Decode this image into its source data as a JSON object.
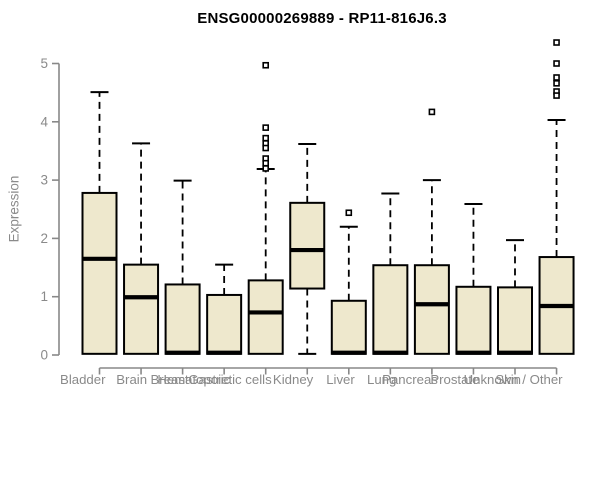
{
  "chart_data": {
    "type": "boxplot",
    "title": "ENSG00000269889 - RP11-816J6.3",
    "xlabel": "",
    "ylabel": "Expression",
    "ylim": [
      0,
      5
    ],
    "yticks": [
      0,
      1,
      2,
      3,
      4,
      5
    ],
    "grid": false,
    "legend": "none",
    "categories": [
      "Bladder",
      "Brain",
      "Breast",
      "Gastric",
      "Hematopoietic cells",
      "Kidney",
      "Liver",
      "Lung",
      "Pancreas",
      "Prostate",
      "Skin",
      "Unknown / Other"
    ],
    "series": [
      {
        "name": "Bladder",
        "whisker_low": 0.02,
        "q1": 0.02,
        "median": 1.65,
        "q3": 2.78,
        "whisker_high": 4.51,
        "outliers": []
      },
      {
        "name": "Brain",
        "whisker_low": 0.02,
        "q1": 0.02,
        "median": 0.99,
        "q3": 1.55,
        "whisker_high": 3.63,
        "outliers": []
      },
      {
        "name": "Breast",
        "whisker_low": 0.02,
        "q1": 0.02,
        "median": 0.04,
        "q3": 1.21,
        "whisker_high": 2.99,
        "outliers": []
      },
      {
        "name": "Gastric",
        "whisker_low": 0.02,
        "q1": 0.02,
        "median": 0.04,
        "q3": 1.03,
        "whisker_high": 1.55,
        "outliers": []
      },
      {
        "name": "Hematopoietic cells",
        "whisker_low": 0.02,
        "q1": 0.02,
        "median": 0.73,
        "q3": 1.28,
        "whisker_high": 3.19,
        "outliers": [
          4.97,
          3.9,
          3.72,
          3.63,
          3.55,
          3.37,
          3.29,
          3.2
        ]
      },
      {
        "name": "Kidney",
        "whisker_low": 0.02,
        "q1": 1.14,
        "median": 1.8,
        "q3": 2.61,
        "whisker_high": 3.62,
        "outliers": []
      },
      {
        "name": "Liver",
        "whisker_low": 0.02,
        "q1": 0.02,
        "median": 0.04,
        "q3": 0.93,
        "whisker_high": 2.2,
        "outliers": [
          2.44
        ]
      },
      {
        "name": "Lung",
        "whisker_low": 0.02,
        "q1": 0.02,
        "median": 0.04,
        "q3": 1.54,
        "whisker_high": 2.77,
        "outliers": []
      },
      {
        "name": "Pancreas",
        "whisker_low": 0.02,
        "q1": 0.02,
        "median": 0.87,
        "q3": 1.54,
        "whisker_high": 3.0,
        "outliers": [
          4.17
        ]
      },
      {
        "name": "Prostate",
        "whisker_low": 0.02,
        "q1": 0.02,
        "median": 0.04,
        "q3": 1.17,
        "whisker_high": 2.59,
        "outliers": []
      },
      {
        "name": "Skin",
        "whisker_low": 0.02,
        "q1": 0.02,
        "median": 0.04,
        "q3": 1.16,
        "whisker_high": 1.97,
        "outliers": []
      },
      {
        "name": "Unknown / Other",
        "whisker_low": 0.02,
        "q1": 0.02,
        "median": 0.84,
        "q3": 1.68,
        "whisker_high": 4.03,
        "outliers": [
          5.36,
          5.0,
          4.76,
          4.66,
          4.52,
          4.45
        ]
      }
    ]
  },
  "colors": {
    "box_fill": "#EEE8CD",
    "box_border": "#000000",
    "median": "#000000",
    "whisker": "#000000",
    "outlier": "#000000",
    "axis": "#888888",
    "tick_text": "#8a8a8a",
    "title_text": "#000000"
  }
}
